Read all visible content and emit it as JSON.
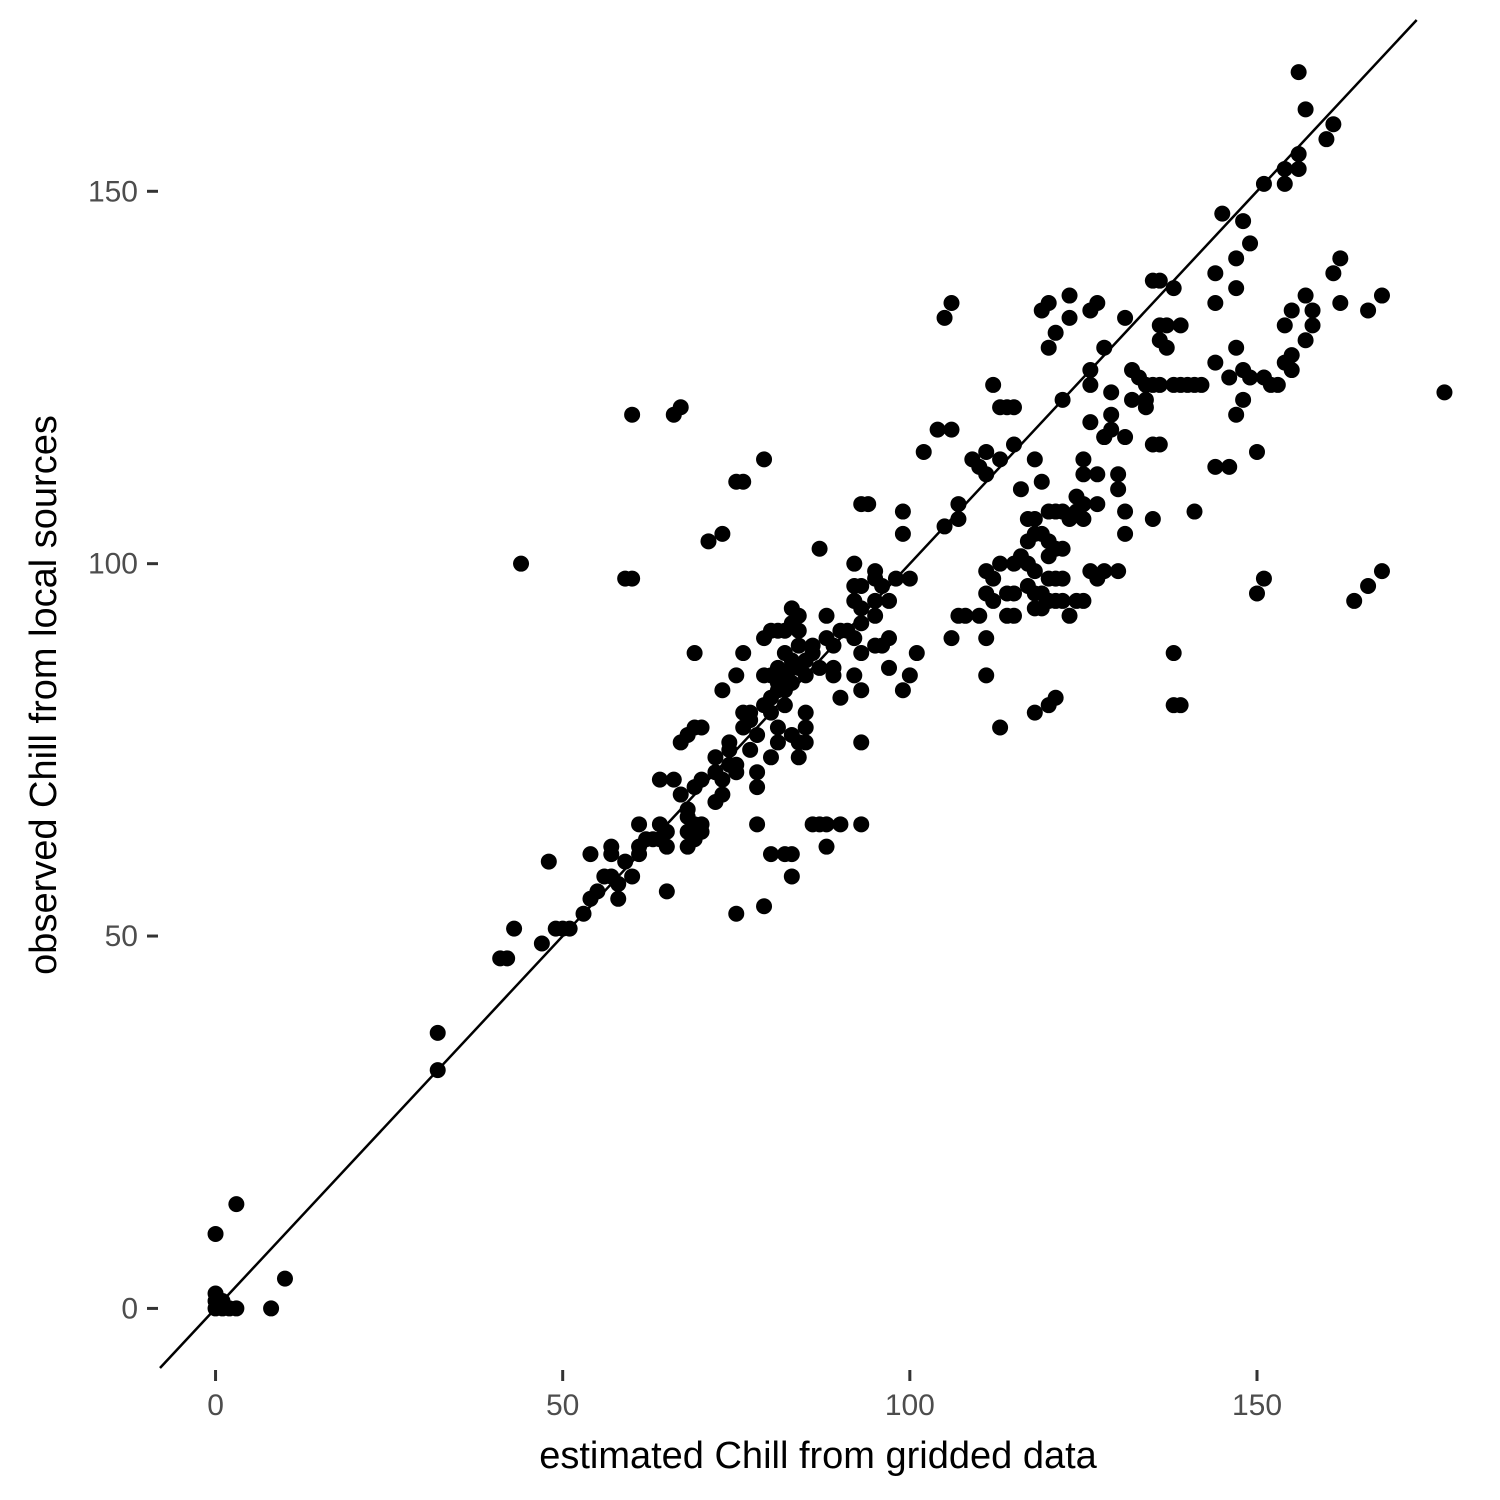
{
  "chart_data": {
    "type": "scatter",
    "xlabel": "estimated Chill from gridded data",
    "ylabel": "observed Chill from local sources",
    "xlim": [
      -8,
      185
    ],
    "ylim": [
      -8,
      173
    ],
    "x_ticks": [
      0,
      50,
      100,
      150
    ],
    "y_ticks": [
      0,
      50,
      100,
      150
    ],
    "reference_line": {
      "intercept": 0,
      "slope": 1
    },
    "grid": false,
    "point_color": "#000000",
    "points": [
      [
        0,
        0
      ],
      [
        0,
        1
      ],
      [
        0,
        2
      ],
      [
        1,
        0
      ],
      [
        1,
        1
      ],
      [
        2,
        0
      ],
      [
        3,
        0
      ],
      [
        0,
        10
      ],
      [
        3,
        14
      ],
      [
        8,
        0
      ],
      [
        10,
        4
      ],
      [
        32,
        32
      ],
      [
        32,
        37
      ],
      [
        41,
        47
      ],
      [
        42,
        47
      ],
      [
        43,
        51
      ],
      [
        44,
        100
      ],
      [
        47,
        49
      ],
      [
        48,
        60
      ],
      [
        49,
        51
      ],
      [
        50,
        51
      ],
      [
        51,
        51
      ],
      [
        53,
        53
      ],
      [
        54,
        61
      ],
      [
        54,
        55
      ],
      [
        55,
        56
      ],
      [
        56,
        58
      ],
      [
        57,
        58
      ],
      [
        57,
        61
      ],
      [
        57,
        62
      ],
      [
        58,
        55
      ],
      [
        58,
        57
      ],
      [
        59,
        60
      ],
      [
        59,
        98
      ],
      [
        60,
        98
      ],
      [
        60,
        58
      ],
      [
        60,
        120
      ],
      [
        61,
        61
      ],
      [
        61,
        62
      ],
      [
        61,
        65
      ],
      [
        62,
        63
      ],
      [
        63,
        63
      ],
      [
        64,
        63
      ],
      [
        64,
        65
      ],
      [
        64,
        71
      ],
      [
        65,
        64
      ],
      [
        65,
        62
      ],
      [
        65,
        56
      ],
      [
        66,
        71
      ],
      [
        66,
        120
      ],
      [
        67,
        121
      ],
      [
        67,
        76
      ],
      [
        67,
        69
      ],
      [
        68,
        77
      ],
      [
        68,
        66
      ],
      [
        68,
        62
      ],
      [
        68,
        67
      ],
      [
        68,
        64
      ],
      [
        69,
        78
      ],
      [
        69,
        70
      ],
      [
        69,
        65
      ],
      [
        69,
        63
      ],
      [
        69,
        88
      ],
      [
        70,
        78
      ],
      [
        70,
        71
      ],
      [
        70,
        65
      ],
      [
        70,
        64
      ],
      [
        71,
        103
      ],
      [
        72,
        72
      ],
      [
        72,
        74
      ],
      [
        72,
        68
      ],
      [
        73,
        104
      ],
      [
        73,
        83
      ],
      [
        73,
        71
      ],
      [
        73,
        69
      ],
      [
        74,
        76
      ],
      [
        74,
        73
      ],
      [
        74,
        75
      ],
      [
        75,
        111
      ],
      [
        75,
        85
      ],
      [
        75,
        73
      ],
      [
        75,
        72
      ],
      [
        75,
        53
      ],
      [
        76,
        111
      ],
      [
        76,
        88
      ],
      [
        76,
        78
      ],
      [
        76,
        80
      ],
      [
        77,
        80
      ],
      [
        77,
        79
      ],
      [
        77,
        75
      ],
      [
        78,
        65
      ],
      [
        78,
        72
      ],
      [
        78,
        70
      ],
      [
        78,
        77
      ],
      [
        79,
        114
      ],
      [
        79,
        90
      ],
      [
        79,
        85
      ],
      [
        79,
        81
      ],
      [
        79,
        54
      ],
      [
        80,
        91
      ],
      [
        80,
        85
      ],
      [
        80,
        82
      ],
      [
        80,
        80
      ],
      [
        80,
        74
      ],
      [
        80,
        61
      ],
      [
        81,
        91
      ],
      [
        81,
        86
      ],
      [
        81,
        84
      ],
      [
        81,
        83
      ],
      [
        81,
        78
      ],
      [
        81,
        76
      ],
      [
        82,
        91
      ],
      [
        82,
        88
      ],
      [
        82,
        85
      ],
      [
        82,
        83
      ],
      [
        82,
        81
      ],
      [
        82,
        61
      ],
      [
        83,
        94
      ],
      [
        83,
        92
      ],
      [
        83,
        87
      ],
      [
        83,
        86
      ],
      [
        83,
        84
      ],
      [
        83,
        77
      ],
      [
        83,
        61
      ],
      [
        83,
        58
      ],
      [
        84,
        93
      ],
      [
        84,
        91
      ],
      [
        84,
        89
      ],
      [
        84,
        86
      ],
      [
        84,
        76
      ],
      [
        84,
        74
      ],
      [
        85,
        87
      ],
      [
        85,
        85
      ],
      [
        85,
        80
      ],
      [
        85,
        78
      ],
      [
        85,
        76
      ],
      [
        86,
        88
      ],
      [
        86,
        89
      ],
      [
        86,
        65
      ],
      [
        87,
        102
      ],
      [
        87,
        86
      ],
      [
        87,
        65
      ],
      [
        88,
        90
      ],
      [
        88,
        93
      ],
      [
        88,
        65
      ],
      [
        88,
        62
      ],
      [
        89,
        89
      ],
      [
        89,
        86
      ],
      [
        89,
        85
      ],
      [
        90,
        91
      ],
      [
        90,
        82
      ],
      [
        90,
        65
      ],
      [
        91,
        91
      ],
      [
        92,
        100
      ],
      [
        92,
        97
      ],
      [
        92,
        95
      ],
      [
        92,
        90
      ],
      [
        92,
        85
      ],
      [
        93,
        108
      ],
      [
        93,
        97
      ],
      [
        93,
        94
      ],
      [
        93,
        92
      ],
      [
        93,
        88
      ],
      [
        93,
        83
      ],
      [
        93,
        76
      ],
      [
        93,
        65
      ],
      [
        94,
        108
      ],
      [
        95,
        99
      ],
      [
        95,
        98
      ],
      [
        95,
        95
      ],
      [
        95,
        93
      ],
      [
        95,
        89
      ],
      [
        96,
        89
      ],
      [
        96,
        97
      ],
      [
        97,
        90
      ],
      [
        97,
        95
      ],
      [
        97,
        86
      ],
      [
        98,
        98
      ],
      [
        99,
        107
      ],
      [
        99,
        104
      ],
      [
        99,
        83
      ],
      [
        100,
        98
      ],
      [
        100,
        85
      ],
      [
        101,
        88
      ],
      [
        102,
        115
      ],
      [
        104,
        118
      ],
      [
        105,
        133
      ],
      [
        105,
        105
      ],
      [
        106,
        135
      ],
      [
        106,
        118
      ],
      [
        106,
        90
      ],
      [
        107,
        108
      ],
      [
        107,
        106
      ],
      [
        107,
        93
      ],
      [
        108,
        93
      ],
      [
        109,
        114
      ],
      [
        110,
        113
      ],
      [
        110,
        93
      ],
      [
        111,
        112
      ],
      [
        111,
        115
      ],
      [
        111,
        99
      ],
      [
        111,
        96
      ],
      [
        111,
        90
      ],
      [
        111,
        85
      ],
      [
        112,
        124
      ],
      [
        112,
        98
      ],
      [
        112,
        95
      ],
      [
        113,
        121
      ],
      [
        113,
        114
      ],
      [
        113,
        100
      ],
      [
        113,
        78
      ],
      [
        114,
        121
      ],
      [
        114,
        93
      ],
      [
        114,
        96
      ],
      [
        115,
        121
      ],
      [
        115,
        116
      ],
      [
        115,
        100
      ],
      [
        115,
        93
      ],
      [
        115,
        96
      ],
      [
        116,
        110
      ],
      [
        116,
        101
      ],
      [
        117,
        103
      ],
      [
        117,
        106
      ],
      [
        117,
        100
      ],
      [
        117,
        97
      ],
      [
        118,
        114
      ],
      [
        118,
        106
      ],
      [
        118,
        104
      ],
      [
        118,
        99
      ],
      [
        118,
        96
      ],
      [
        118,
        94
      ],
      [
        118,
        80
      ],
      [
        119,
        134
      ],
      [
        119,
        111
      ],
      [
        119,
        104
      ],
      [
        119,
        96
      ],
      [
        119,
        94
      ],
      [
        120,
        135
      ],
      [
        120,
        129
      ],
      [
        120,
        107
      ],
      [
        120,
        103
      ],
      [
        120,
        101
      ],
      [
        120,
        98
      ],
      [
        120,
        95
      ],
      [
        120,
        81
      ],
      [
        121,
        131
      ],
      [
        121,
        107
      ],
      [
        121,
        102
      ],
      [
        121,
        98
      ],
      [
        121,
        95
      ],
      [
        121,
        82
      ],
      [
        122,
        107
      ],
      [
        122,
        102
      ],
      [
        122,
        98
      ],
      [
        122,
        95
      ],
      [
        122,
        122
      ],
      [
        123,
        136
      ],
      [
        123,
        133
      ],
      [
        123,
        106
      ],
      [
        123,
        93
      ],
      [
        124,
        109
      ],
      [
        124,
        107
      ],
      [
        124,
        95
      ],
      [
        125,
        114
      ],
      [
        125,
        112
      ],
      [
        125,
        108
      ],
      [
        125,
        106
      ],
      [
        125,
        95
      ],
      [
        126,
        126
      ],
      [
        126,
        124
      ],
      [
        126,
        119
      ],
      [
        126,
        134
      ],
      [
        126,
        99
      ],
      [
        127,
        135
      ],
      [
        127,
        112
      ],
      [
        127,
        98
      ],
      [
        127,
        108
      ],
      [
        128,
        129
      ],
      [
        128,
        117
      ],
      [
        128,
        117
      ],
      [
        128,
        99
      ],
      [
        129,
        120
      ],
      [
        129,
        118
      ],
      [
        129,
        123
      ],
      [
        130,
        99
      ],
      [
        130,
        110
      ],
      [
        130,
        112
      ],
      [
        131,
        133
      ],
      [
        131,
        104
      ],
      [
        131,
        107
      ],
      [
        131,
        117
      ],
      [
        132,
        126
      ],
      [
        132,
        122
      ],
      [
        133,
        125
      ],
      [
        134,
        124
      ],
      [
        134,
        122
      ],
      [
        134,
        121
      ],
      [
        135,
        138
      ],
      [
        135,
        124
      ],
      [
        135,
        106
      ],
      [
        135,
        116
      ],
      [
        136,
        138
      ],
      [
        136,
        132
      ],
      [
        136,
        130
      ],
      [
        136,
        124
      ],
      [
        136,
        116
      ],
      [
        137,
        132
      ],
      [
        137,
        129
      ],
      [
        138,
        137
      ],
      [
        138,
        124
      ],
      [
        138,
        88
      ],
      [
        138,
        81
      ],
      [
        139,
        132
      ],
      [
        139,
        124
      ],
      [
        139,
        81
      ],
      [
        140,
        124
      ],
      [
        141,
        124
      ],
      [
        141,
        107
      ],
      [
        142,
        124
      ],
      [
        144,
        135
      ],
      [
        144,
        139
      ],
      [
        144,
        127
      ],
      [
        144,
        113
      ],
      [
        145,
        147
      ],
      [
        146,
        113
      ],
      [
        146,
        125
      ],
      [
        147,
        141
      ],
      [
        147,
        137
      ],
      [
        147,
        129
      ],
      [
        147,
        120
      ],
      [
        148,
        146
      ],
      [
        148,
        126
      ],
      [
        148,
        122
      ],
      [
        149,
        143
      ],
      [
        149,
        125
      ],
      [
        150,
        115
      ],
      [
        150,
        96
      ],
      [
        151,
        151
      ],
      [
        151,
        125
      ],
      [
        151,
        98
      ],
      [
        152,
        124
      ],
      [
        153,
        124
      ],
      [
        154,
        151
      ],
      [
        154,
        127
      ],
      [
        154,
        153
      ],
      [
        154,
        132
      ],
      [
        155,
        134
      ],
      [
        155,
        128
      ],
      [
        155,
        126
      ],
      [
        156,
        166
      ],
      [
        156,
        153
      ],
      [
        156,
        155
      ],
      [
        157,
        161
      ],
      [
        157,
        136
      ],
      [
        157,
        130
      ],
      [
        158,
        132
      ],
      [
        158,
        134
      ],
      [
        160,
        157
      ],
      [
        161,
        159
      ],
      [
        161,
        139
      ],
      [
        162,
        141
      ],
      [
        162,
        135
      ],
      [
        164,
        95
      ],
      [
        166,
        134
      ],
      [
        166,
        97
      ],
      [
        168,
        136
      ],
      [
        168,
        99
      ],
      [
        177,
        123
      ]
    ]
  }
}
